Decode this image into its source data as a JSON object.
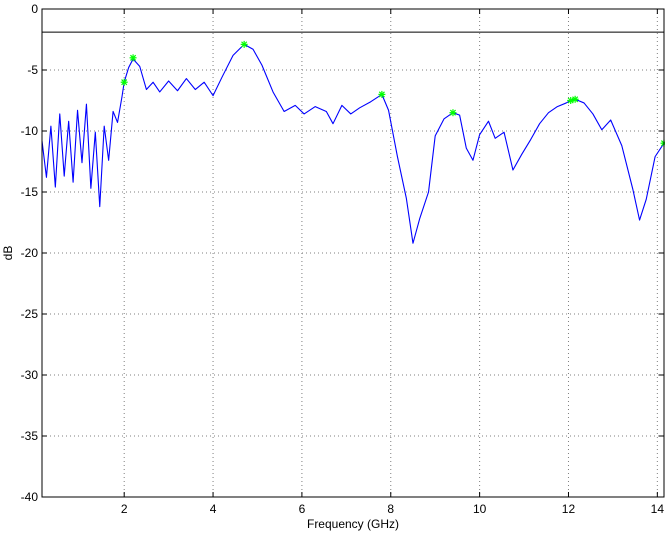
{
  "chart_data": {
    "type": "line",
    "title": "",
    "xlabel": "Frequency (GHz)",
    "ylabel": "dB",
    "xlim": [
      0.15,
      14.15
    ],
    "ylim": [
      -40,
      0
    ],
    "xticks": [
      2,
      4,
      6,
      8,
      10,
      12,
      14
    ],
    "yticks": [
      0,
      -5,
      -10,
      -15,
      -20,
      -25,
      -30,
      -35,
      -40
    ],
    "grid": true,
    "grid_style": "dotted",
    "colors": {
      "series": "#0000ff",
      "reference_line": "#000000",
      "markers": "#00ff00",
      "grid": "#7f7f7f"
    },
    "reference_line": {
      "y": -1.9,
      "color": "#000000"
    },
    "series": [
      {
        "color": "#0000ff",
        "style": "line",
        "points": [
          [
            0.15,
            -10.8
          ],
          [
            0.25,
            -13.8
          ],
          [
            0.35,
            -9.6
          ],
          [
            0.45,
            -14.6
          ],
          [
            0.55,
            -8.6
          ],
          [
            0.65,
            -13.7
          ],
          [
            0.75,
            -9.2
          ],
          [
            0.85,
            -14.2
          ],
          [
            0.95,
            -8.3
          ],
          [
            1.05,
            -12.6
          ],
          [
            1.15,
            -7.8
          ],
          [
            1.25,
            -14.7
          ],
          [
            1.35,
            -10.1
          ],
          [
            1.45,
            -16.2
          ],
          [
            1.55,
            -9.6
          ],
          [
            1.65,
            -12.4
          ],
          [
            1.75,
            -8.4
          ],
          [
            1.85,
            -9.3
          ],
          [
            1.95,
            -7.2
          ],
          [
            2.0,
            -6.0
          ],
          [
            2.1,
            -4.8
          ],
          [
            2.2,
            -4.1
          ],
          [
            2.35,
            -4.7
          ],
          [
            2.5,
            -6.6
          ],
          [
            2.65,
            -6.0
          ],
          [
            2.8,
            -6.8
          ],
          [
            3.0,
            -5.9
          ],
          [
            3.2,
            -6.7
          ],
          [
            3.4,
            -5.7
          ],
          [
            3.6,
            -6.6
          ],
          [
            3.8,
            -6.0
          ],
          [
            4.0,
            -7.1
          ],
          [
            4.2,
            -5.6
          ],
          [
            4.45,
            -3.8
          ],
          [
            4.7,
            -2.9
          ],
          [
            4.9,
            -3.3
          ],
          [
            5.1,
            -4.6
          ],
          [
            5.35,
            -6.8
          ],
          [
            5.6,
            -8.4
          ],
          [
            5.85,
            -7.9
          ],
          [
            6.05,
            -8.6
          ],
          [
            6.3,
            -8.0
          ],
          [
            6.55,
            -8.4
          ],
          [
            6.7,
            -9.4
          ],
          [
            6.9,
            -7.9
          ],
          [
            7.1,
            -8.6
          ],
          [
            7.3,
            -8.1
          ],
          [
            7.55,
            -7.6
          ],
          [
            7.8,
            -7.0
          ],
          [
            7.95,
            -8.3
          ],
          [
            8.15,
            -12.1
          ],
          [
            8.35,
            -15.5
          ],
          [
            8.5,
            -19.2
          ],
          [
            8.65,
            -17.2
          ],
          [
            8.85,
            -15.0
          ],
          [
            9.0,
            -10.4
          ],
          [
            9.2,
            -9.0
          ],
          [
            9.4,
            -8.5
          ],
          [
            9.55,
            -8.7
          ],
          [
            9.7,
            -11.4
          ],
          [
            9.85,
            -12.4
          ],
          [
            10.0,
            -10.3
          ],
          [
            10.2,
            -9.2
          ],
          [
            10.35,
            -10.6
          ],
          [
            10.55,
            -10.1
          ],
          [
            10.75,
            -13.2
          ],
          [
            10.95,
            -11.9
          ],
          [
            11.15,
            -10.7
          ],
          [
            11.35,
            -9.4
          ],
          [
            11.55,
            -8.5
          ],
          [
            11.75,
            -8.0
          ],
          [
            11.95,
            -7.7
          ],
          [
            12.05,
            -7.5
          ],
          [
            12.15,
            -7.4
          ],
          [
            12.35,
            -7.7
          ],
          [
            12.55,
            -8.6
          ],
          [
            12.75,
            -9.9
          ],
          [
            12.95,
            -9.1
          ],
          [
            13.2,
            -11.2
          ],
          [
            13.45,
            -14.8
          ],
          [
            13.6,
            -17.3
          ],
          [
            13.75,
            -15.6
          ],
          [
            13.95,
            -12.1
          ],
          [
            14.15,
            -11.0
          ]
        ]
      }
    ],
    "markers": {
      "symbol": "*",
      "color": "#00ff00",
      "points": [
        [
          2.0,
          -6.0
        ],
        [
          2.2,
          -4.0
        ],
        [
          4.7,
          -2.9
        ],
        [
          7.8,
          -7.0
        ],
        [
          9.4,
          -8.5
        ],
        [
          12.05,
          -7.5
        ],
        [
          12.15,
          -7.4
        ],
        [
          14.15,
          -11.0
        ]
      ]
    }
  }
}
